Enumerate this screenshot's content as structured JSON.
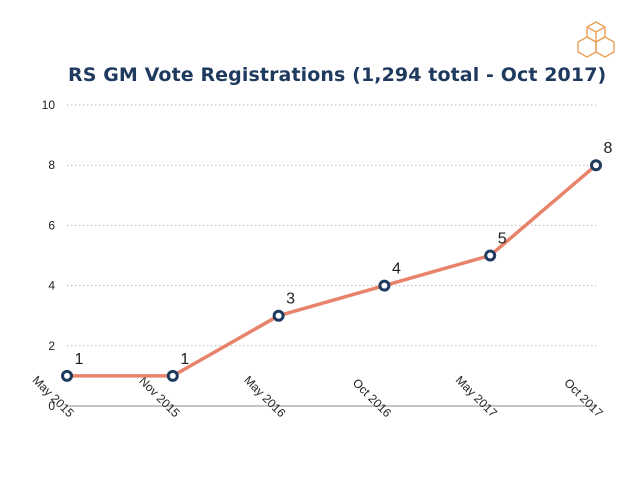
{
  "slide": {
    "logo_icon": "hexagon-cubes-logo",
    "accent_color": "#e8836b",
    "marker_color": "#1f3a5f"
  },
  "chart_data": {
    "type": "line",
    "title": "RS GM Vote Registrations (1,294 total - Oct 2017)",
    "xlabel": "",
    "ylabel": "",
    "categories": [
      "May 2015",
      "Nov 2015",
      "May 2016",
      "Oct 2016",
      "May 2017",
      "Oct 2017"
    ],
    "series": [
      {
        "values": [
          1,
          1,
          3,
          4,
          5,
          8
        ]
      }
    ],
    "data_labels": [
      "1",
      "1",
      "3",
      "4",
      "5",
      "8"
    ],
    "y_ticks": [
      "0",
      "2",
      "4",
      "6",
      "8",
      "10"
    ],
    "ylim": [
      0,
      10
    ],
    "grid": true,
    "legend": "none"
  }
}
